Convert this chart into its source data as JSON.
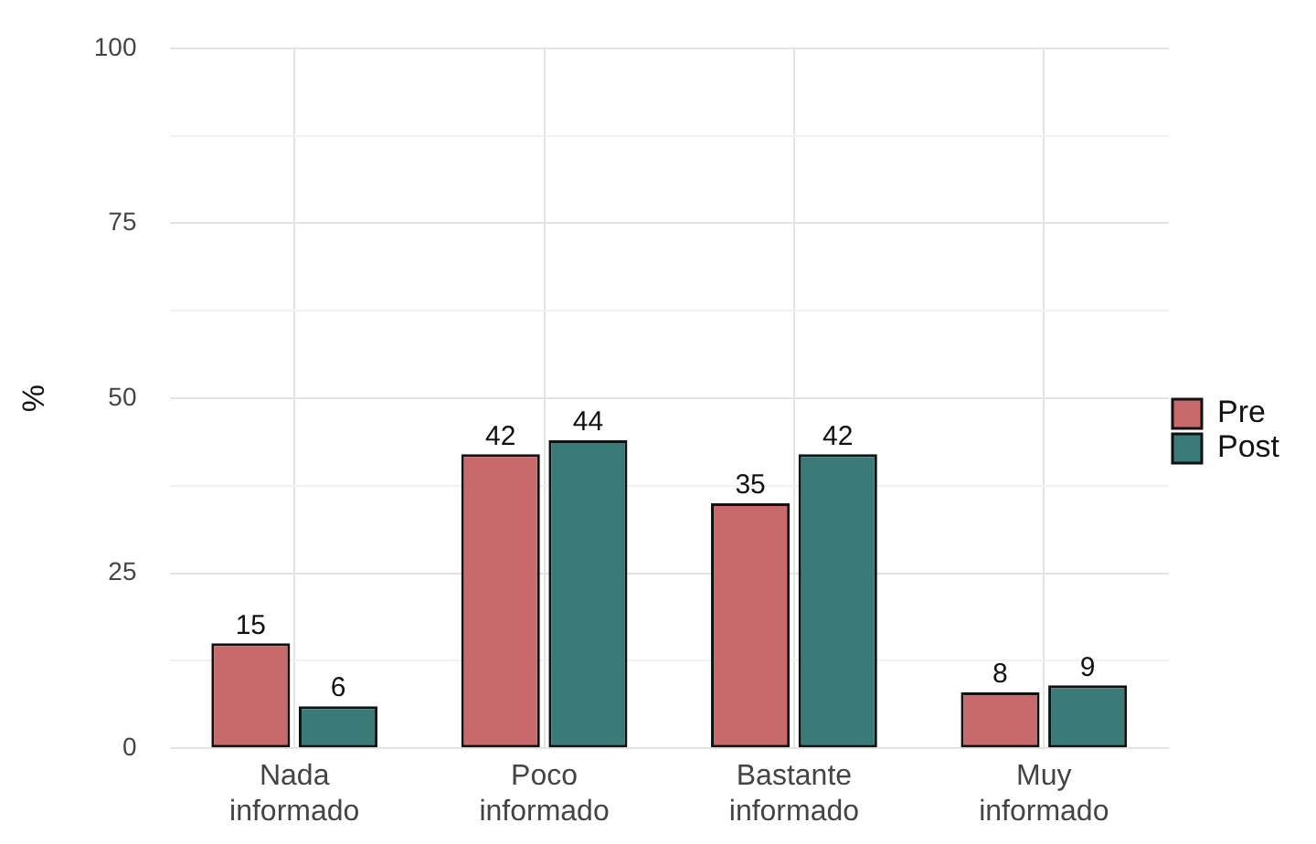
{
  "chart_data": {
    "type": "bar",
    "ylabel": "%",
    "categories": [
      "Nada informado",
      "Poco informado",
      "Bastante informado",
      "Muy informado"
    ],
    "series": [
      {
        "name": "Pre",
        "color": "#c8696b",
        "values": [
          15,
          42,
          35,
          8
        ]
      },
      {
        "name": "Post",
        "color": "#3a7b78",
        "values": [
          6,
          44,
          42,
          9
        ]
      }
    ],
    "ylim": [
      0,
      100
    ],
    "yticks": [
      0,
      {
        "value": 12.5,
        "label": null
      },
      25,
      {
        "value": 37.5,
        "label": null
      },
      50,
      {
        "value": 62.5,
        "label": null
      },
      75,
      {
        "value": 87.5,
        "label": null
      },
      100
    ],
    "grid": true,
    "legend": "right",
    "data_labels": true
  }
}
